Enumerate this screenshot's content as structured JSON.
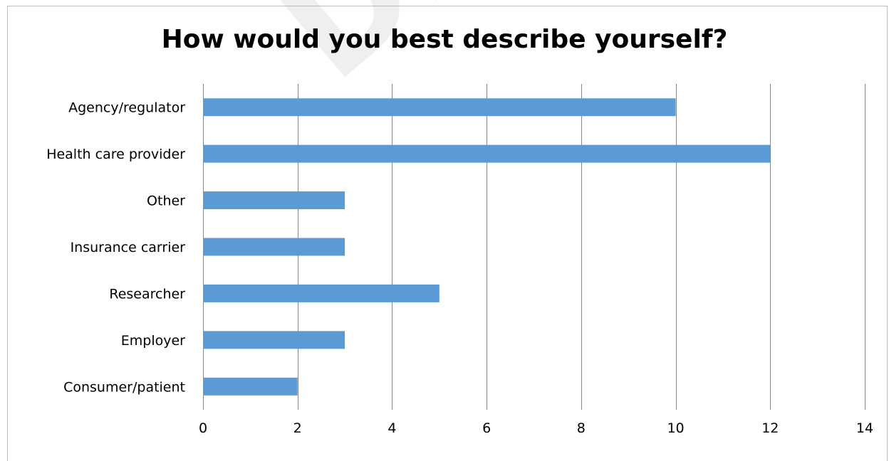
{
  "chart_data": {
    "type": "bar",
    "orientation": "horizontal",
    "title": "How would you best describe yourself?",
    "xlabel": "",
    "ylabel": "",
    "categories": [
      "Agency/regulator",
      "Health care provider",
      "Other",
      "Insurance carrier",
      "Researcher",
      "Employer",
      "Consumer/patient"
    ],
    "values": [
      10,
      12,
      3,
      3,
      5,
      3,
      2
    ],
    "xlim": [
      0,
      14
    ],
    "xticks": [
      0,
      2,
      4,
      6,
      8,
      10,
      12,
      14
    ],
    "grid": "vertical",
    "legend": "none",
    "colors": {
      "bar": "#5b9bd5",
      "grid": "#878787",
      "text": "#000000"
    }
  }
}
